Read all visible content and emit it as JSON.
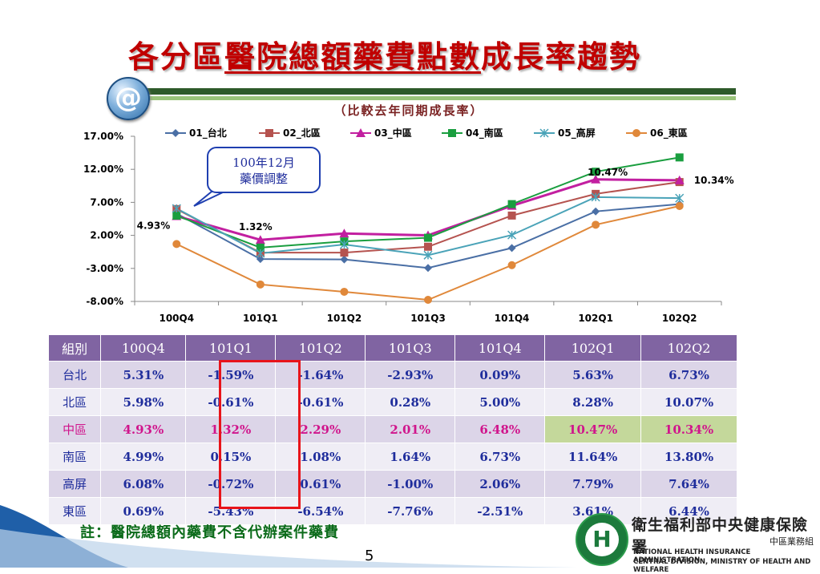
{
  "slide": {
    "title_prefix": "各分區",
    "title_underlined": "醫院總額藥費點數",
    "title_suffix": "成長率趨勢",
    "subtitle": "（比較去年同期成長率）",
    "logo_glyph": "@",
    "callout_line1": "100年12月",
    "callout_line2": "藥價調整",
    "note": "註：醫院總額內藥費不含代辦案件藥費",
    "page_number": "5",
    "org_name_cn": "衛生福利部中央健康保險署",
    "org_division_cn": "中區業務組",
    "org_name_en1": "NATIONAL HEALTH INSURANCE ADMINISTRATION-",
    "org_name_en2": "CENTRAL DIVISION, MINISTRY OF HEALTH AND WELFARE",
    "org_logo_glyph": "H",
    "colors": {
      "title": "#c00000",
      "header_bg": "#8064a2",
      "highlight_text": "#d0158c",
      "highlight_cell": "#c4d89b",
      "box": "#e8141a"
    }
  },
  "chart_data": {
    "type": "line",
    "title": "",
    "xlabel": "",
    "ylabel": "",
    "categories": [
      "100Q4",
      "101Q1",
      "101Q2",
      "101Q3",
      "101Q4",
      "102Q1",
      "102Q2"
    ],
    "ylim": [
      -8,
      17
    ],
    "yticks": [
      "17.00%",
      "12.00%",
      "7.00%",
      "2.00%",
      "-3.00%",
      "-8.00%"
    ],
    "ytick_values": [
      17,
      12,
      7,
      2,
      -3,
      -8
    ],
    "legend_position": "top",
    "series": [
      {
        "name": "01_台北",
        "values": [
          5.31,
          -1.59,
          -1.64,
          -2.93,
          0.09,
          5.63,
          6.73
        ],
        "color": "#4a6fa5",
        "marker": "diamond"
      },
      {
        "name": "02_北區",
        "values": [
          5.98,
          -0.61,
          -0.61,
          0.28,
          5.0,
          8.28,
          10.07
        ],
        "color": "#b5534f",
        "marker": "square"
      },
      {
        "name": "03_中區",
        "values": [
          4.93,
          1.32,
          2.29,
          2.01,
          6.48,
          10.47,
          10.34
        ],
        "color": "#c21fa0",
        "marker": "triangle"
      },
      {
        "name": "04_南區",
        "values": [
          4.99,
          0.15,
          1.08,
          1.64,
          6.73,
          11.64,
          13.8
        ],
        "color": "#1a9e3f",
        "marker": "square"
      },
      {
        "name": "05_高屏",
        "values": [
          6.08,
          -0.72,
          0.61,
          -1.0,
          2.06,
          7.79,
          7.64
        ],
        "color": "#4aa3b8",
        "marker": "x"
      },
      {
        "name": "06_東區",
        "values": [
          0.69,
          -5.43,
          -6.54,
          -7.76,
          -2.51,
          3.61,
          6.44
        ],
        "color": "#e0883a",
        "marker": "circle"
      }
    ],
    "annotations": [
      {
        "text": "4.93%",
        "series": 2,
        "index": 0
      },
      {
        "text": "1.32%",
        "series": 2,
        "index": 1
      },
      {
        "text": "10.47%",
        "series": 2,
        "index": 5
      },
      {
        "text": "10.34%",
        "series": 2,
        "index": 6
      }
    ]
  },
  "table": {
    "header": [
      "組別",
      "100Q4",
      "101Q1",
      "101Q2",
      "101Q3",
      "101Q4",
      "102Q1",
      "102Q2"
    ],
    "rows": [
      {
        "name": "台北",
        "values": [
          "5.31%",
          "-1.59%",
          "-1.64%",
          "-2.93%",
          "0.09%",
          "5.63%",
          "6.73%"
        ]
      },
      {
        "name": "北區",
        "values": [
          "5.98%",
          "-0.61%",
          "-0.61%",
          "0.28%",
          "5.00%",
          "8.28%",
          "10.07%"
        ]
      },
      {
        "name": "中區",
        "values": [
          "4.93%",
          "1.32%",
          "2.29%",
          "2.01%",
          "6.48%",
          "10.47%",
          "10.34%"
        ]
      },
      {
        "name": "南區",
        "values": [
          "4.99%",
          "0.15%",
          "1.08%",
          "1.64%",
          "6.73%",
          "11.64%",
          "13.80%"
        ]
      },
      {
        "name": "高屏",
        "values": [
          "6.08%",
          "-0.72%",
          "0.61%",
          "-1.00%",
          "2.06%",
          "7.79%",
          "7.64%"
        ]
      },
      {
        "name": "東區",
        "values": [
          "0.69%",
          "-5.43%",
          "-6.54%",
          "-7.76%",
          "-2.51%",
          "3.61%",
          "6.44%"
        ]
      }
    ]
  }
}
